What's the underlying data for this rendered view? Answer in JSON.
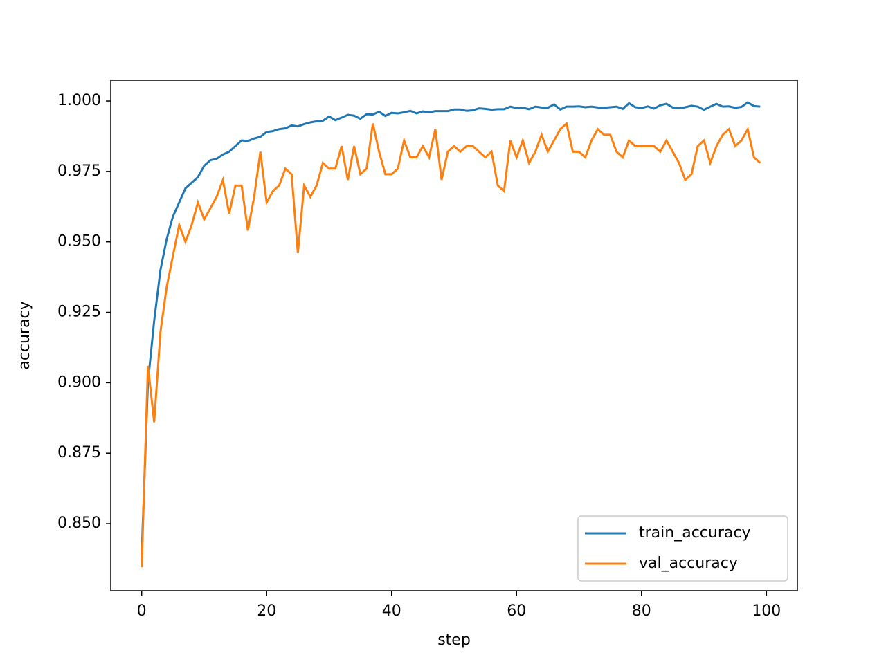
{
  "chart_data": {
    "type": "line",
    "xlabel": "step",
    "ylabel": "accuracy",
    "x": [
      0,
      1,
      2,
      3,
      4,
      5,
      6,
      7,
      8,
      9,
      10,
      11,
      12,
      13,
      14,
      15,
      16,
      17,
      18,
      19,
      20,
      21,
      22,
      23,
      24,
      25,
      26,
      27,
      28,
      29,
      30,
      31,
      32,
      33,
      34,
      35,
      36,
      37,
      38,
      39,
      40,
      41,
      42,
      43,
      44,
      45,
      46,
      47,
      48,
      49,
      50,
      51,
      52,
      53,
      54,
      55,
      56,
      57,
      58,
      59,
      60,
      61,
      62,
      63,
      64,
      65,
      66,
      67,
      68,
      69,
      70,
      71,
      72,
      73,
      74,
      75,
      76,
      77,
      78,
      79,
      80,
      81,
      82,
      83,
      84,
      85,
      86,
      87,
      88,
      89,
      90,
      91,
      92,
      93,
      94,
      95,
      96,
      97,
      98,
      99
    ],
    "series": [
      {
        "name": "train_accuracy",
        "color": "#1f77b4",
        "values": [
          0.839,
          0.9,
          0.922,
          0.94,
          0.951,
          0.959,
          0.964,
          0.969,
          0.971,
          0.973,
          0.977,
          0.979,
          0.9795,
          0.981,
          0.982,
          0.984,
          0.986,
          0.9858,
          0.9867,
          0.9873,
          0.989,
          0.9893,
          0.99,
          0.9903,
          0.9913,
          0.991,
          0.9918,
          0.9924,
          0.9928,
          0.993,
          0.9945,
          0.9932,
          0.9941,
          0.9951,
          0.9948,
          0.9937,
          0.9953,
          0.9952,
          0.9962,
          0.9947,
          0.9958,
          0.9956,
          0.996,
          0.9965,
          0.9956,
          0.9963,
          0.996,
          0.9964,
          0.9964,
          0.9964,
          0.997,
          0.997,
          0.9965,
          0.9967,
          0.9974,
          0.9972,
          0.9969,
          0.9971,
          0.9971,
          0.998,
          0.9975,
          0.9976,
          0.9971,
          0.998,
          0.9977,
          0.9976,
          0.9988,
          0.997,
          0.998,
          0.998,
          0.9981,
          0.9978,
          0.998,
          0.9977,
          0.9976,
          0.9978,
          0.998,
          0.9972,
          0.9992,
          0.9978,
          0.9975,
          0.9981,
          0.9973,
          0.9985,
          0.999,
          0.9977,
          0.9974,
          0.9978,
          0.9983,
          0.998,
          0.9969,
          0.998,
          0.999,
          0.998,
          0.9981,
          0.9976,
          0.9979,
          0.9995,
          0.9982,
          0.998
        ]
      },
      {
        "name": "val_accuracy",
        "color": "#ff7f0e",
        "values": [
          0.8345,
          0.906,
          0.886,
          0.918,
          0.934,
          0.945,
          0.956,
          0.95,
          0.956,
          0.964,
          0.958,
          0.962,
          0.966,
          0.972,
          0.96,
          0.97,
          0.97,
          0.954,
          0.966,
          0.982,
          0.964,
          0.968,
          0.97,
          0.976,
          0.974,
          0.946,
          0.97,
          0.966,
          0.97,
          0.978,
          0.976,
          0.976,
          0.984,
          0.972,
          0.984,
          0.974,
          0.976,
          0.992,
          0.982,
          0.974,
          0.974,
          0.976,
          0.986,
          0.98,
          0.98,
          0.984,
          0.98,
          0.99,
          0.972,
          0.982,
          0.984,
          0.982,
          0.984,
          0.984,
          0.982,
          0.98,
          0.982,
          0.97,
          0.968,
          0.986,
          0.98,
          0.986,
          0.978,
          0.982,
          0.988,
          0.982,
          0.986,
          0.99,
          0.992,
          0.982,
          0.982,
          0.98,
          0.986,
          0.99,
          0.988,
          0.988,
          0.982,
          0.98,
          0.986,
          0.984,
          0.984,
          0.984,
          0.984,
          0.982,
          0.986,
          0.982,
          0.978,
          0.972,
          0.974,
          0.984,
          0.986,
          0.978,
          0.984,
          0.988,
          0.99,
          0.984,
          0.986,
          0.99,
          0.98,
          0.978
        ]
      }
    ],
    "xlim": [
      -4.95,
      104.95
    ],
    "xticks": [
      0,
      20,
      40,
      60,
      80,
      100
    ],
    "ylim": [
      0.8262,
      1.00737
    ],
    "yticks": [
      {
        "value": 0.85,
        "label": "0.850"
      },
      {
        "value": 0.875,
        "label": "0.875"
      },
      {
        "value": 0.9,
        "label": "0.900"
      },
      {
        "value": 0.925,
        "label": "0.925"
      },
      {
        "value": 0.95,
        "label": "0.950"
      },
      {
        "value": 0.975,
        "label": "0.975"
      },
      {
        "value": 1.0,
        "label": "1.000"
      }
    ],
    "legend": "lower right",
    "grid": false
  }
}
